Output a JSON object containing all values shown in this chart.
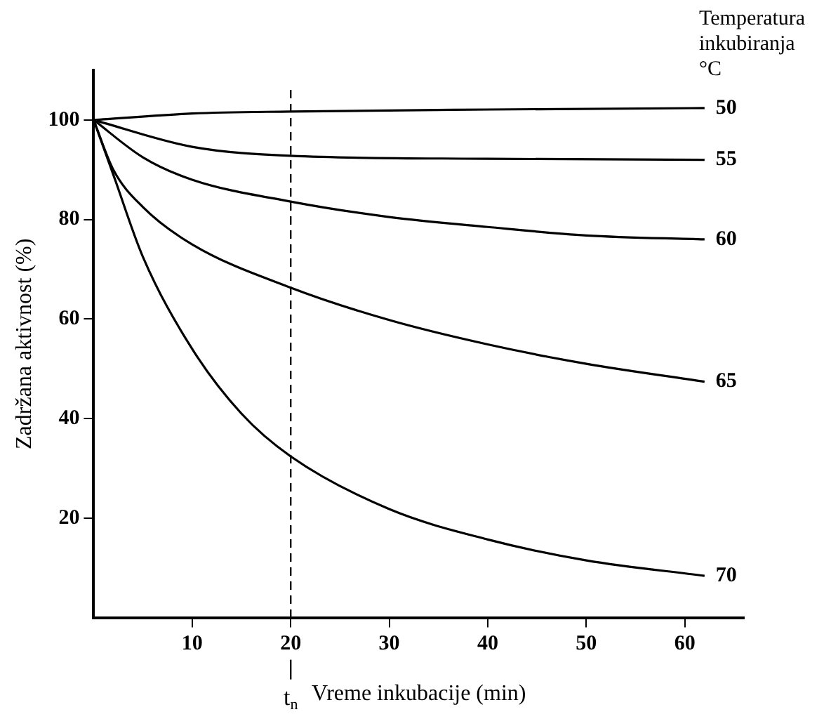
{
  "chart_data": {
    "type": "line",
    "xlabel": "Vreme inkubacije (min)",
    "ylabel": "Zadržana aktivnost (%)",
    "legend_title": "Temperatura inkubiranja °C",
    "xlim": [
      0,
      66
    ],
    "ylim": [
      0,
      110
    ],
    "xticks": [
      10,
      20,
      30,
      40,
      50,
      60
    ],
    "yticks": [
      20,
      40,
      60,
      80,
      100
    ],
    "marker": "none",
    "line_style": "solid",
    "ref_lines": [
      {
        "axis": "x",
        "value": 20,
        "label": "t$_{n}$",
        "line_style": "dashed"
      }
    ],
    "series": [
      {
        "name": "50",
        "color": "#000000",
        "x": [
          0,
          10,
          20,
          40,
          62
        ],
        "values": [
          100,
          101.3,
          101.7,
          102.1,
          102.4
        ]
      },
      {
        "name": "55",
        "color": "#000000",
        "x": [
          0,
          10,
          20,
          40,
          62
        ],
        "values": [
          100,
          94.6,
          92.8,
          92.2,
          92
        ]
      },
      {
        "name": "60",
        "color": "#000000",
        "x": [
          0,
          5,
          10,
          20,
          30,
          40,
          50,
          62
        ],
        "values": [
          100,
          92.5,
          88,
          83.6,
          80.5,
          78.5,
          76.8,
          76
        ]
      },
      {
        "name": "65",
        "color": "#000000",
        "x": [
          0,
          2,
          5,
          10,
          20,
          30,
          40,
          50,
          62
        ],
        "values": [
          100,
          90,
          82.5,
          75,
          66.3,
          59.8,
          54.9,
          51,
          47.4
        ]
      },
      {
        "name": "70",
        "color": "#000000",
        "x": [
          0,
          2,
          5,
          10,
          15,
          20,
          30,
          40,
          50,
          62
        ],
        "values": [
          100,
          89,
          72.5,
          54,
          41,
          32.4,
          21.8,
          15.7,
          11.5,
          8.4
        ]
      }
    ]
  }
}
